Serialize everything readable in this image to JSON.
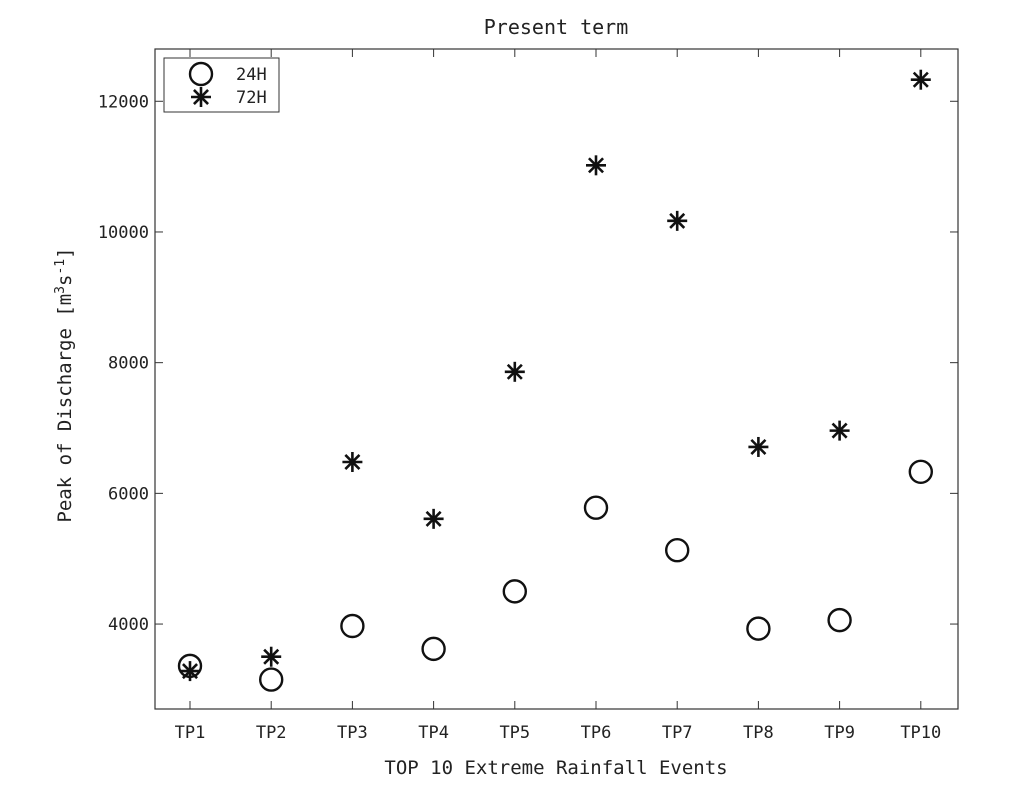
{
  "chart_data": {
    "type": "scatter",
    "title": "Present term",
    "xlabel": "TOP 10 Extreme Rainfall Events",
    "ylabel_main": "Peak of Discharge [m",
    "ylabel_sup1": "3",
    "ylabel_mid": "s",
    "ylabel_sup2": "-1",
    "ylabel_end": "]",
    "categories": [
      "TP1",
      "TP2",
      "TP3",
      "TP4",
      "TP5",
      "TP6",
      "TP7",
      "TP8",
      "TP9",
      "TP10"
    ],
    "ylim": [
      2700,
      12800
    ],
    "yticks": [
      4000,
      6000,
      8000,
      10000,
      12000
    ],
    "grid": false,
    "legend_position": "top-left",
    "series": [
      {
        "name": "24H",
        "marker": "circle",
        "color": "#111111",
        "values": [
          3360,
          3150,
          3970,
          3620,
          4500,
          5780,
          5130,
          3930,
          4060,
          6330
        ]
      },
      {
        "name": "72H",
        "marker": "asterisk",
        "color": "#111111",
        "values": [
          3280,
          3500,
          6480,
          5610,
          7860,
          11020,
          10170,
          6710,
          6960,
          12330
        ]
      }
    ]
  }
}
